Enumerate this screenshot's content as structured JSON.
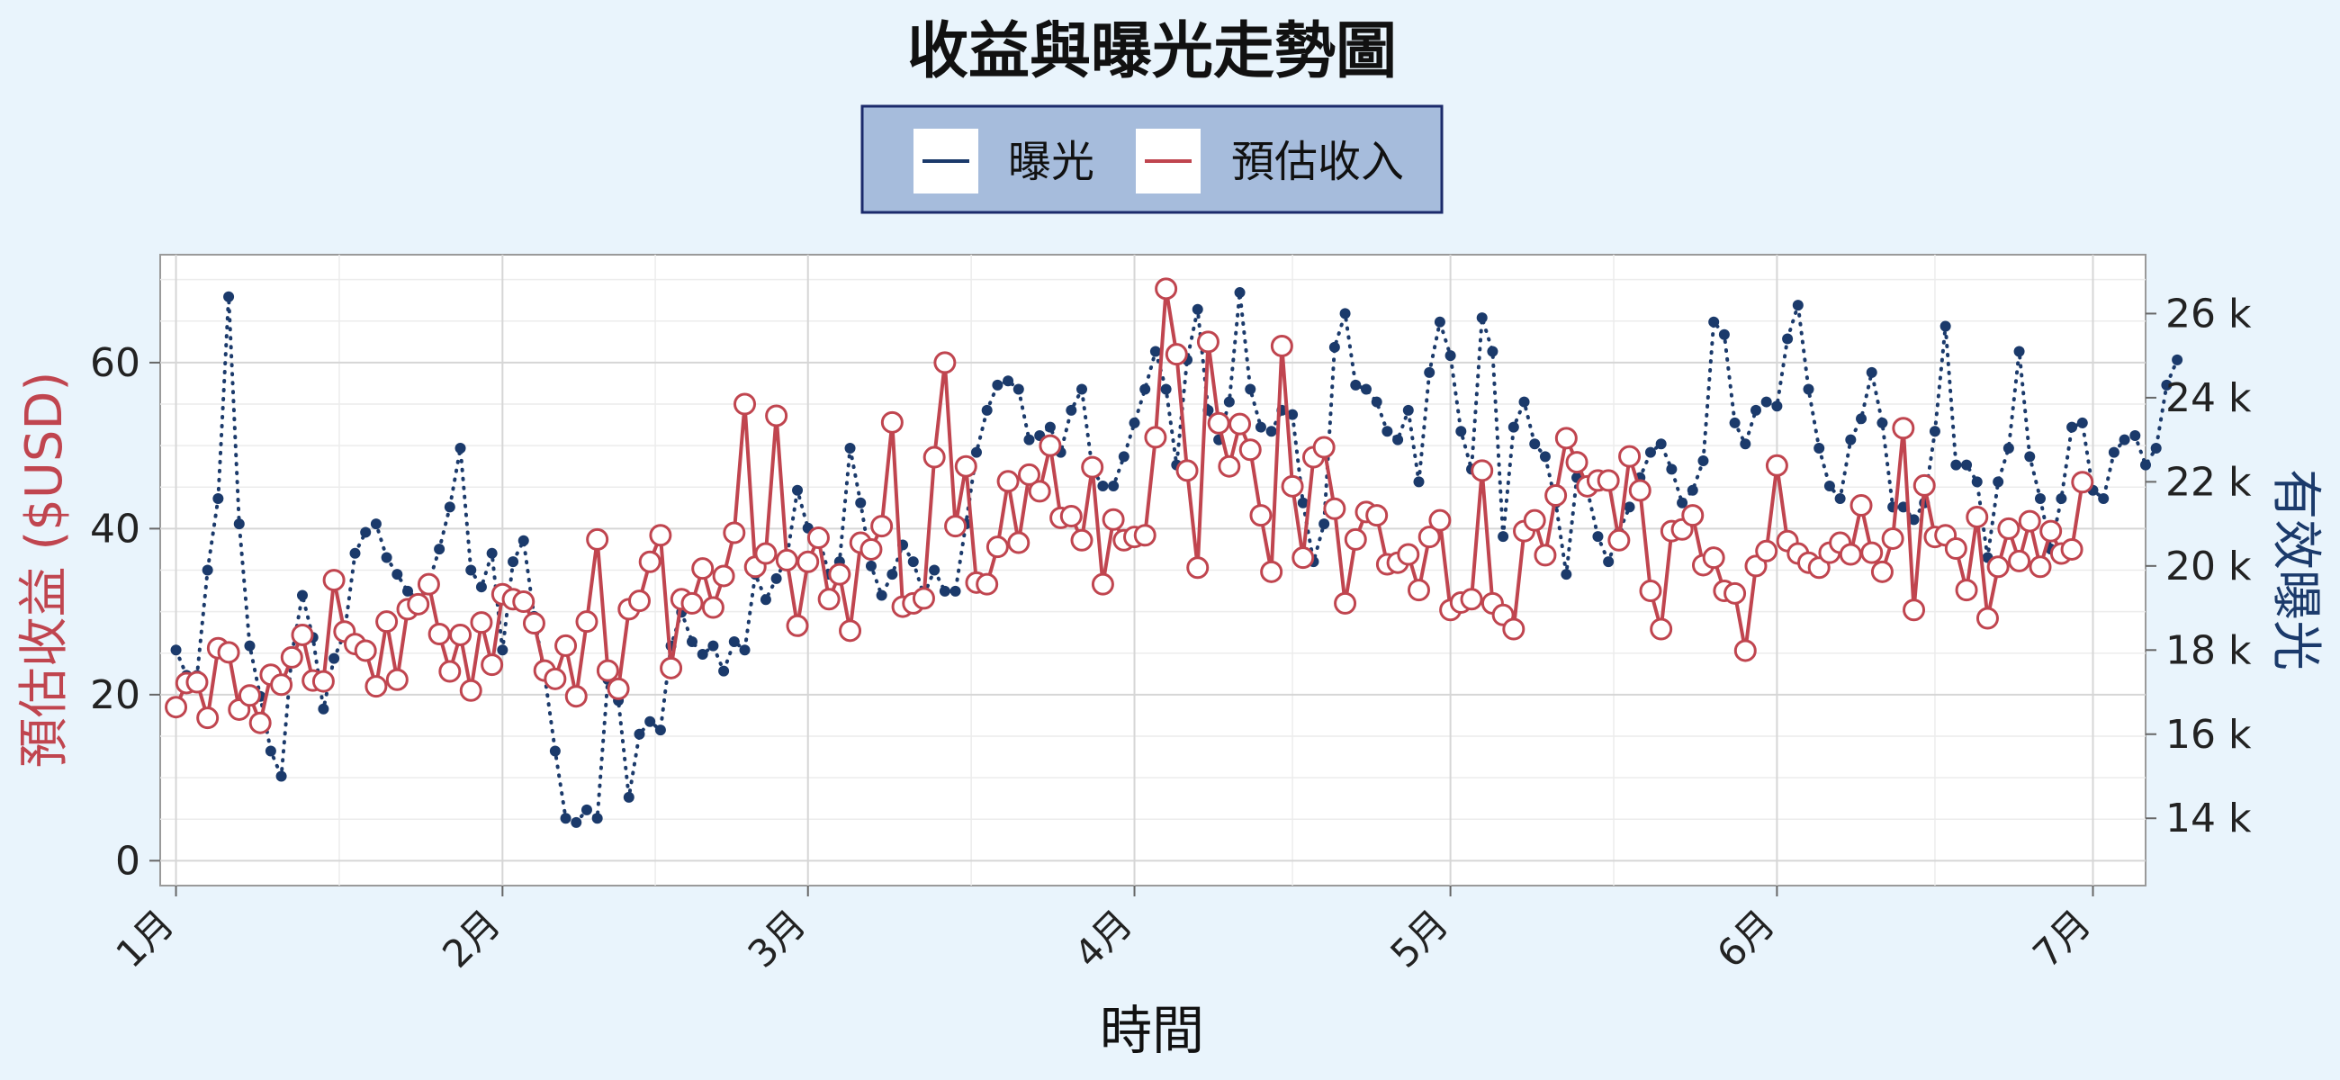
{
  "chart_data": {
    "type": "line",
    "title": "收益與曝光走勢圖",
    "xlabel": "時間",
    "ylabel_left": "預估收益 ($USD)",
    "ylabel_right": "有效曝光",
    "x_ticks": [
      "1月",
      "2月",
      "3月",
      "4月",
      "5月",
      "6月",
      "7月"
    ],
    "y_left_ticks": [
      0,
      20,
      40,
      60
    ],
    "y_right_ticks": [
      "14 k",
      "16 k",
      "18 k",
      "20 k",
      "22 k",
      "24 k",
      "26 k"
    ],
    "ylim_left": [
      -3,
      73
    ],
    "ylim_right": [
      12400,
      27400
    ],
    "x_range_days": [
      -1.5,
      187
    ],
    "grid": true,
    "legend_position": "top-center",
    "colors": {
      "impressions": "#1b3a6b",
      "revenue": "#c0454f",
      "legend_bg": "#a6bcdc",
      "legend_border": "#1b2a6b",
      "background": "#e9f4fc",
      "plot_bg": "#ffffff",
      "grid": "#d6d6d6"
    },
    "series": [
      {
        "name": "曝光",
        "axis": "right",
        "style": "dotted",
        "x_start_date": "2024-01-01",
        "values": [
          18000,
          17400,
          17400,
          19900,
          21600,
          26400,
          21000,
          18100,
          16900,
          15600,
          15000,
          17900,
          19300,
          18300,
          16600,
          17800,
          18400,
          20300,
          20800,
          21000,
          20200,
          19800,
          19400,
          19200,
          19600,
          20400,
          21400,
          22800,
          19900,
          19500,
          20300,
          18000,
          20100,
          20600,
          18800,
          17400,
          15600,
          14000,
          13900,
          14200,
          14000,
          17300,
          16800,
          14500,
          16000,
          16300,
          16100,
          18100,
          18900,
          18200,
          17900,
          18100,
          17500,
          18200,
          18000,
          19800,
          19200,
          19700,
          20200,
          21800,
          20900,
          20700,
          19800,
          20100,
          22800,
          21500,
          20000,
          19300,
          19800,
          20500,
          20100,
          19300,
          19900,
          19400,
          19400,
          21000,
          22700,
          23700,
          24300,
          24400,
          24200,
          23000,
          23100,
          23300,
          22700,
          23700,
          24200,
          22300,
          21900,
          21900,
          22600,
          23400,
          24200,
          25100,
          24200,
          22400,
          24900,
          26100,
          23700,
          23000,
          23900,
          26500,
          24200,
          23300,
          23200,
          23700,
          23600,
          21500,
          20100,
          21000,
          25200,
          26000,
          24300,
          24200,
          23900,
          23200,
          23000,
          23700,
          22000,
          24600,
          25800,
          25000,
          23200,
          22300,
          25900,
          25100,
          20700,
          23300,
          23900,
          22900,
          22600,
          21500,
          19800,
          22100,
          21800,
          20700,
          20100,
          20800,
          21400,
          22100,
          22700,
          22900,
          22300,
          21500,
          21800,
          22500,
          25800,
          25500,
          23400,
          22900,
          23700,
          23900,
          23800,
          25400,
          26200,
          24200,
          22800,
          21900,
          21600,
          23000,
          23500,
          24600,
          23400,
          21400,
          21400,
          21100,
          21500,
          23200,
          25700,
          22400,
          22400,
          22000,
          20200,
          22000,
          22800,
          25100,
          22600,
          21600,
          20400,
          21600,
          23300,
          23400,
          21800,
          21600,
          22700,
          23000,
          23100,
          22400,
          22800,
          24300,
          24900
        ]
      },
      {
        "name": "預估收入",
        "axis": "left",
        "style": "solid-with-markers",
        "x_start_date": "2024-01-01",
        "values": [
          18.5,
          21.4,
          21.5,
          17.2,
          25.6,
          25.1,
          18.2,
          19.9,
          16.6,
          22.4,
          21.2,
          24.5,
          27.2,
          21.7,
          21.6,
          33.8,
          27.6,
          26.1,
          25.3,
          21.0,
          28.8,
          21.8,
          30.3,
          30.9,
          33.3,
          27.3,
          22.8,
          27.2,
          20.5,
          28.7,
          23.6,
          32.1,
          31.5,
          31.2,
          28.6,
          22.9,
          21.9,
          25.9,
          19.8,
          28.8,
          38.7,
          22.9,
          20.7,
          30.3,
          31.3,
          36.0,
          39.2,
          23.2,
          31.5,
          31.0,
          35.2,
          30.5,
          34.3,
          39.5,
          55.0,
          35.4,
          37.0,
          53.6,
          36.2,
          28.3,
          36.0,
          38.9,
          31.5,
          34.5,
          27.7,
          38.3,
          37.5,
          40.3,
          52.8,
          30.6,
          31.0,
          31.6,
          48.6,
          60.0,
          40.3,
          47.5,
          33.5,
          33.3,
          37.8,
          45.7,
          38.3,
          46.5,
          44.5,
          50.0,
          41.3,
          41.5,
          38.6,
          47.4,
          33.3,
          41.1,
          38.6,
          39.0,
          39.2,
          51.0,
          68.9,
          61.0,
          47.0,
          35.3,
          62.5,
          52.7,
          47.5,
          52.6,
          49.5,
          41.6,
          34.8,
          62.0,
          45.1,
          36.5,
          48.6,
          49.8,
          42.4,
          31.0,
          38.7,
          42.0,
          41.6,
          35.7,
          35.9,
          36.9,
          32.6,
          39.0,
          41.0,
          30.2,
          31.1,
          31.5,
          47.0,
          31.0,
          29.6,
          27.9,
          39.7,
          41.0,
          36.8,
          44.0,
          50.9,
          48.0,
          45.1,
          45.8,
          45.8,
          38.6,
          48.7,
          44.6,
          32.5,
          27.9,
          39.7,
          39.9,
          41.6,
          35.6,
          36.5,
          32.5,
          32.2,
          25.3,
          35.5,
          37.3,
          47.6,
          38.5,
          37.0,
          35.9,
          35.3,
          37.1,
          38.3,
          36.9,
          42.8,
          37.1,
          34.8,
          38.8,
          52.1,
          30.2,
          45.2,
          39.0,
          39.2,
          37.6,
          32.6,
          41.4,
          29.2,
          35.4,
          40.0,
          36.1,
          40.9,
          35.4,
          39.7,
          37.0,
          37.5,
          45.6
        ]
      }
    ]
  }
}
